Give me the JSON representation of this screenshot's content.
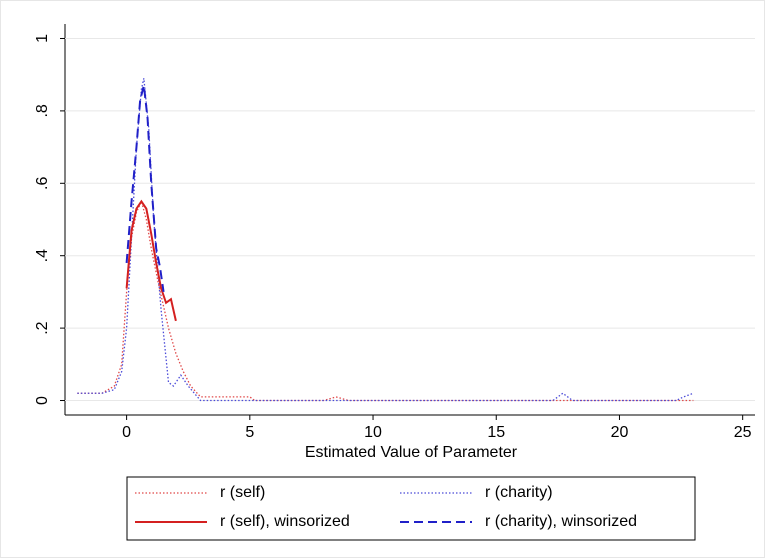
{
  "chart_data": {
    "type": "line",
    "xlabel": "Estimated Value of Parameter",
    "xlim": [
      -2.5,
      25.5
    ],
    "ylim": [
      -0.04,
      1.04
    ],
    "xticks": [
      0,
      5,
      10,
      15,
      20,
      25
    ],
    "yticks": [
      0,
      {
        "value": 0.2,
        "label": ".2"
      },
      {
        "value": 0.4,
        "label": ".4"
      },
      {
        "value": 0.6,
        "label": ".6"
      },
      {
        "value": 0.8,
        "label": ".8"
      },
      1
    ],
    "grid": true,
    "legend": "bottom",
    "series": [
      {
        "name": "r (self)",
        "color": "#e04848",
        "line_style": "dotted",
        "x": [
          -2,
          -1,
          -0.5,
          -0.2,
          0,
          0.2,
          0.4,
          0.6,
          0.8,
          1.0,
          1.3,
          1.7,
          2.0,
          2.3,
          2.6,
          3.0,
          4.0,
          5.0,
          5.2,
          8.0,
          8.5,
          9.0,
          23
        ],
        "values": [
          0.02,
          0.02,
          0.04,
          0.1,
          0.3,
          0.45,
          0.52,
          0.55,
          0.5,
          0.42,
          0.32,
          0.2,
          0.13,
          0.08,
          0.04,
          0.01,
          0.01,
          0.01,
          0,
          0,
          0.01,
          0,
          0
        ]
      },
      {
        "name": "r (charity)",
        "color": "#4a4ad8",
        "line_style": "dotted",
        "x": [
          -2,
          -1,
          -0.5,
          -0.2,
          0,
          0.2,
          0.4,
          0.6,
          0.7,
          0.9,
          1.1,
          1.4,
          1.7,
          1.9,
          2.2,
          2.5,
          3.0,
          17.3,
          17.7,
          18.1,
          22.3,
          22.6,
          23
        ],
        "values": [
          0.02,
          0.02,
          0.03,
          0.08,
          0.2,
          0.45,
          0.7,
          0.86,
          0.89,
          0.75,
          0.5,
          0.25,
          0.05,
          0.04,
          0.07,
          0.04,
          0,
          0,
          0.02,
          0,
          0,
          0.01,
          0.02
        ]
      },
      {
        "name": "r (self), winsorized",
        "color": "#d42020",
        "line_style": "solid",
        "x": [
          0,
          0.2,
          0.4,
          0.6,
          0.8,
          1.0,
          1.2,
          1.4,
          1.6,
          1.8,
          2.0
        ],
        "values": [
          0.31,
          0.47,
          0.53,
          0.55,
          0.53,
          0.46,
          0.38,
          0.31,
          0.27,
          0.28,
          0.22
        ]
      },
      {
        "name": "r (charity), winsorized",
        "color": "#2020c8",
        "line_style": "dashed",
        "x": [
          0,
          0.2,
          0.4,
          0.55,
          0.7,
          0.85,
          1.0,
          1.2,
          1.35,
          1.5
        ],
        "values": [
          0.38,
          0.55,
          0.7,
          0.83,
          0.87,
          0.78,
          0.6,
          0.42,
          0.37,
          0.3
        ]
      }
    ]
  }
}
